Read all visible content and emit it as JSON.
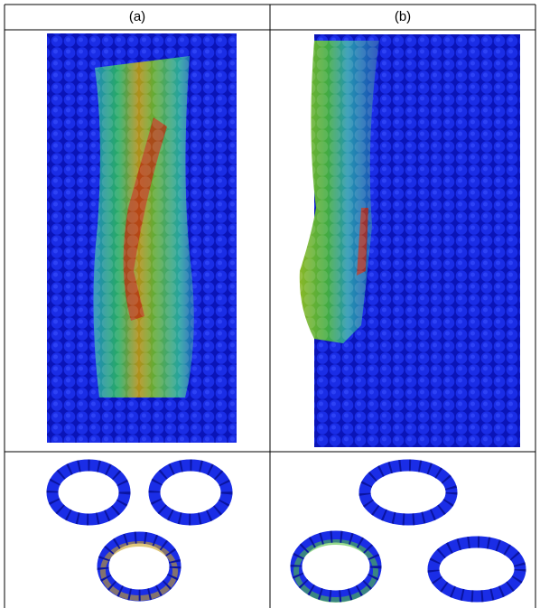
{
  "table": {
    "headers": [
      "(a)",
      "(b)"
    ]
  }
}
